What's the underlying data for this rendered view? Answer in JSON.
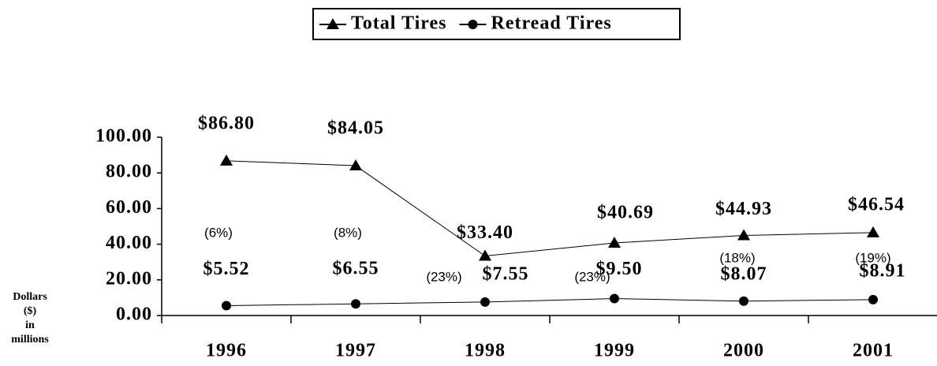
{
  "chart_data": {
    "type": "line",
    "categories": [
      "1996",
      "1997",
      "1998",
      "1999",
      "2000",
      "2001"
    ],
    "series": [
      {
        "name": "Total Tires",
        "color": "#000000",
        "marker": "triangle",
        "values": [
          86.8,
          84.05,
          33.4,
          40.69,
          44.93,
          46.54
        ],
        "value_labels": [
          "$86.80",
          "$84.05",
          "$33.40",
          "$40.69",
          "$44.93",
          "$46.54"
        ]
      },
      {
        "name": "Retread Tires",
        "color": "#000000",
        "marker": "circle",
        "values": [
          5.52,
          6.55,
          7.55,
          9.5,
          8.07,
          8.91
        ],
        "value_labels": [
          "$5.52",
          "$6.55",
          "$7.55",
          "$9.50",
          "$8.07",
          "$8.91"
        ]
      }
    ],
    "annotations": [
      "(6%)",
      "(8%)",
      "(23%)",
      "(23%)",
      "(18%)",
      "(19%)"
    ],
    "ylabel": [
      "Dollars",
      "($)",
      "in",
      "millions"
    ],
    "ylim": [
      0,
      100
    ],
    "yticks": [
      {
        "value": 0,
        "label": "0.00"
      },
      {
        "value": 20,
        "label": "20.00"
      },
      {
        "value": 40,
        "label": "40.00"
      },
      {
        "value": 60,
        "label": "60.00"
      },
      {
        "value": 80,
        "label": "80.00"
      },
      {
        "value": 100,
        "label": "100.00"
      }
    ],
    "legend": "top"
  }
}
